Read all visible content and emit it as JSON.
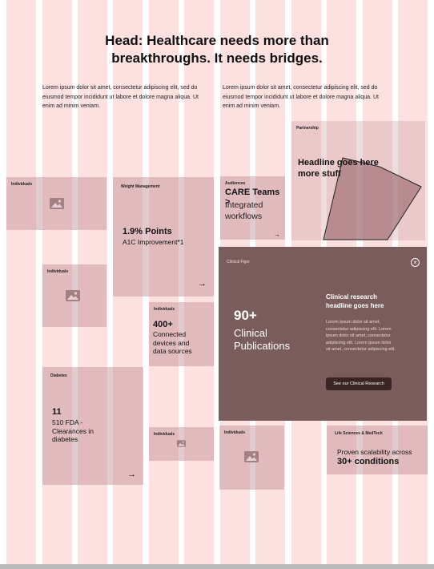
{
  "header": {
    "title_line1": "Head: Healthcare needs more than",
    "title_line2": "breakthroughs. It needs bridges."
  },
  "intro": {
    "left": "Lorem ipsum dolor sit amet, consectetur adipiscing elit, sed do eiusmod tempor incididunt ut labore et dolore magna aliqua. Ut enim ad minim veniam.",
    "right": "Lorem ipsum dolor sit amet, consectetur adipiscing elit, sed do eiusmod tempor incididunt ut labore et dolore magna aliqua. Ut enim ad minim veniam."
  },
  "cards": {
    "individuals_1": {
      "label": "Individuals"
    },
    "weight": {
      "label": "Weight Management",
      "value": "1.9% Points",
      "caption": "A1C Improvement*1"
    },
    "audiences": {
      "label": "Audiences",
      "headline": "CARE Teams >",
      "line2": "Integrated",
      "line3": "workflows"
    },
    "partnership": {
      "label": "Partnership",
      "headline1": "Headline goes here",
      "headline2": "more stuff"
    },
    "individuals_2": {
      "label": "Individuals"
    },
    "individuals_3": {
      "label": "Individuals",
      "value": "400+",
      "line1": "Connected",
      "line2": "devices and",
      "line3": "data sources"
    },
    "clinical": {
      "label": "Clinical Figer",
      "stat": "90+",
      "stat_line1": "Clinical",
      "stat_line2": "Publications",
      "headline1": "Clinical research",
      "headline2": "headline goes here",
      "body1": "Lorem ipsum dolor sit amet,",
      "body2": "consectetur adipiscing elit. Lorem",
      "body3": "ipsum dolor sit amet, consectetur",
      "body4": "adipiscing elit. Lorem ipsum dolor",
      "body5": "sit amet, consectetur adipiscing elit.",
      "button": "See our Clinical Research"
    },
    "diabetes": {
      "label": "Diabetes",
      "value": "11",
      "line1": "510 FDA -",
      "line2": "Clearances in",
      "line3": "diabetes"
    },
    "individuals_4": {
      "label": "Individuals"
    },
    "individuals_5": {
      "label": "Individuals"
    },
    "life_sciences": {
      "label": "Life Sciences & MedTech",
      "line1": "Proven scalability across",
      "line2": "30+ conditions"
    }
  },
  "icons": {
    "arrow": "→",
    "close": "×",
    "image": "image-icon"
  },
  "colors": {
    "grid_column": "#fde0e0",
    "card": "#be8c94",
    "feature": "#7a5c5c",
    "button": "#3a2424"
  }
}
